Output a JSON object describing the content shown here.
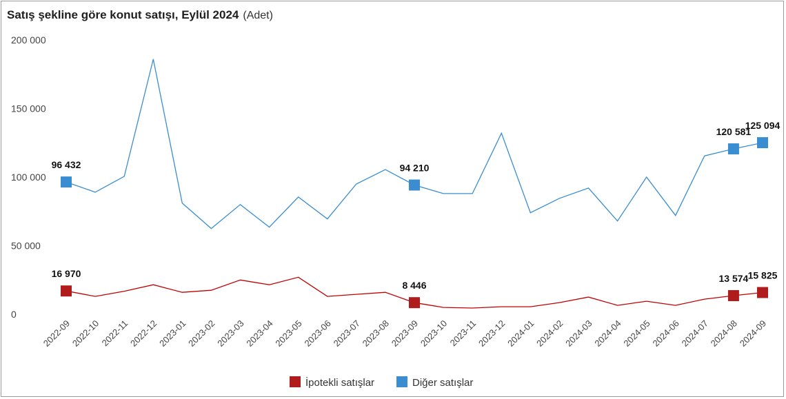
{
  "title": "Satış şekline göre konut satışı, Eylül 2024",
  "subtitle": "(Adet)",
  "chart_data": {
    "type": "line",
    "title": "Satış şekline göre konut satışı, Eylül 2024",
    "subtitle": "(Adet)",
    "xlabel": "",
    "ylabel": "",
    "ylim": [
      0,
      200000
    ],
    "yticks": [
      0,
      50000,
      100000,
      150000,
      200000
    ],
    "ytick_labels": [
      "0",
      "50 000",
      "100 000",
      "150 000",
      "200 000"
    ],
    "grid": false,
    "legend_position": "bottom",
    "x": [
      "2022-09",
      "2022-10",
      "2022-11",
      "2022-12",
      "2023-01",
      "2023-02",
      "2023-03",
      "2023-04",
      "2023-05",
      "2023-06",
      "2023-07",
      "2023-08",
      "2023-09",
      "2023-10",
      "2023-11",
      "2023-12",
      "2024-01",
      "2024-02",
      "2024-03",
      "2024-04",
      "2024-05",
      "2024-06",
      "2024-07",
      "2024-08",
      "2024-09"
    ],
    "series": [
      {
        "name": "İpotekli satışlar",
        "color": "#c00000",
        "values": [
          16970,
          13000,
          16800,
          21500,
          16000,
          17500,
          25000,
          21500,
          27000,
          13000,
          14500,
          16000,
          8446,
          5000,
          4500,
          5500,
          5500,
          8500,
          12500,
          6500,
          9500,
          6500,
          11000,
          13574,
          15825
        ],
        "labeled_points": [
          {
            "index": 0,
            "label": "16 970"
          },
          {
            "index": 12,
            "label": "8 446"
          },
          {
            "index": 23,
            "label": "13 574"
          },
          {
            "index": 24,
            "label": "15 825"
          }
        ]
      },
      {
        "name": "Diğer satışlar",
        "color": "#3a8dd0",
        "values": [
          96432,
          89000,
          100500,
          186000,
          81000,
          62500,
          80000,
          63500,
          85500,
          69500,
          95000,
          105500,
          94210,
          88000,
          88000,
          132000,
          74000,
          84500,
          92000,
          68000,
          100000,
          72000,
          115500,
          120581,
          125094
        ],
        "labeled_points": [
          {
            "index": 0,
            "label": "96 432"
          },
          {
            "index": 12,
            "label": "94 210"
          },
          {
            "index": 23,
            "label": "120 581"
          },
          {
            "index": 24,
            "label": "125 094"
          }
        ]
      }
    ]
  },
  "legend": {
    "items": [
      {
        "label": "İpotekli satışlar",
        "color": "#b01c1c"
      },
      {
        "label": "Diğer satışlar",
        "color": "#3a8dd0"
      }
    ]
  }
}
